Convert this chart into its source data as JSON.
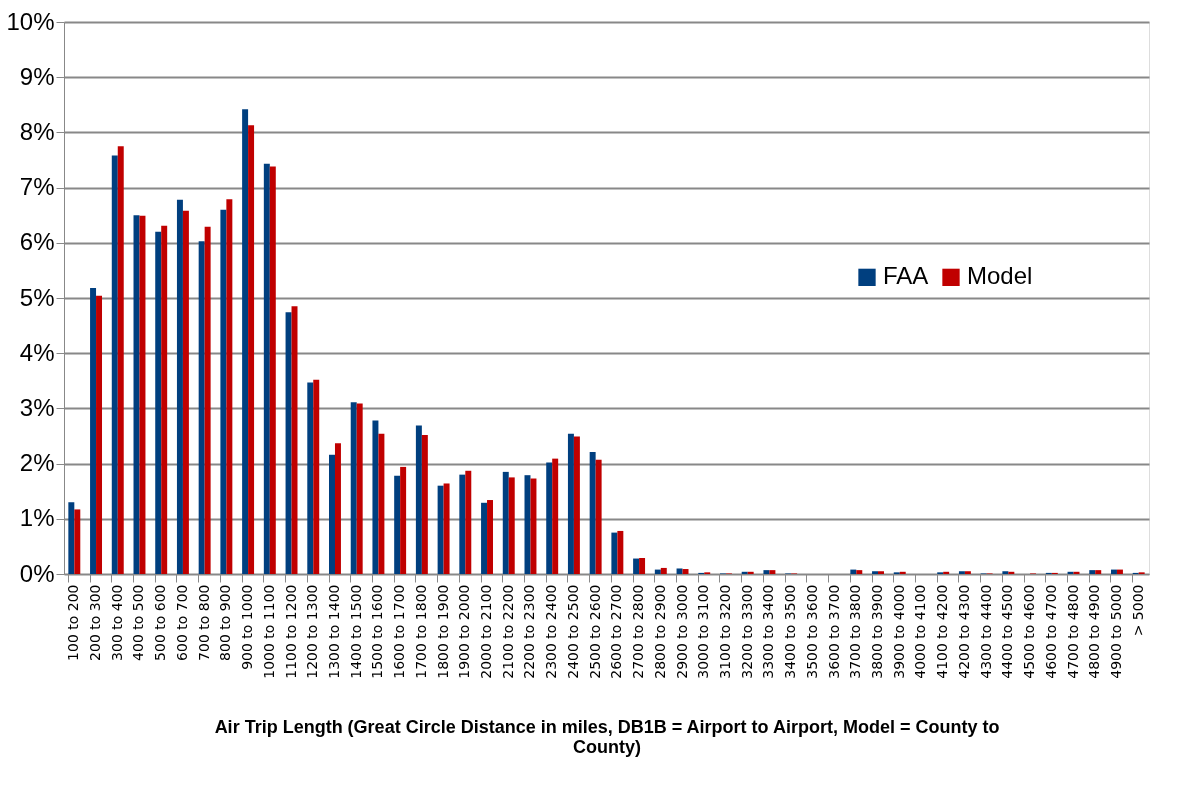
{
  "chart_data": {
    "type": "bar",
    "xlabel": "Air Trip Length (Great Circle Distance in miles, DB1B = Airport to Airport, Model = County to County)",
    "categories": [
      "100 to 200",
      "200 to 300",
      "300 to 400",
      "400 to 500",
      "500 to 600",
      "600 to 700",
      "700 to 800",
      "800 to 900",
      "900 to 1000",
      "1000 to 1100",
      "1100 to 1200",
      "1200 to 1300",
      "1300 to 1400",
      "1400 to 1500",
      "1500 to 1600",
      "1600 to 1700",
      "1700 to 1800",
      "1800 to 1900",
      "1900 to 2000",
      "2000 to 2100",
      "2100 to 2200",
      "2200 to 2300",
      "2300 to 2400",
      "2400 to 2500",
      "2500 to 2600",
      "2600 to 2700",
      "2700 to 2800",
      "2800 to 2900",
      "2900 to 3000",
      "3000 to 3100",
      "3100 to 3200",
      "3200 to 3300",
      "3300 to 3400",
      "3400 to 3500",
      "3500 to 3600",
      "3600 to 3700",
      "3700 to 3800",
      "3800 to 3900",
      "3900 to 4000",
      "4000 to 4100",
      "4100 to 4200",
      "4200 to 4300",
      "4300 to 4400",
      "4400 to 4500",
      "4500 to 4600",
      "4600 to 4700",
      "4700 to 4800",
      "4800 to 4900",
      "4900 to 5000",
      "> 5000"
    ],
    "series": [
      {
        "name": "FAA",
        "color": "#003f7f",
        "values": [
          1.3,
          5.18,
          7.58,
          6.5,
          6.2,
          6.78,
          6.03,
          6.6,
          8.42,
          7.43,
          4.74,
          3.47,
          2.16,
          3.11,
          2.78,
          1.78,
          2.69,
          1.6,
          1.8,
          1.29,
          1.85,
          1.79,
          2.02,
          2.54,
          2.21,
          0.75,
          0.28,
          0.08,
          0.1,
          0.02,
          0.01,
          0.04,
          0.07,
          0.01,
          0,
          0,
          0.08,
          0.05,
          0.03,
          0,
          0.03,
          0.05,
          0.01,
          0.05,
          0,
          0.02,
          0.04,
          0.07,
          0.08,
          0.02
        ]
      },
      {
        "name": "Model",
        "color": "#c00000",
        "values": [
          1.17,
          5.04,
          7.75,
          6.49,
          6.31,
          6.58,
          6.29,
          6.79,
          8.13,
          7.38,
          4.85,
          3.52,
          2.37,
          3.09,
          2.54,
          1.94,
          2.52,
          1.64,
          1.87,
          1.34,
          1.75,
          1.73,
          2.09,
          2.49,
          2.07,
          0.78,
          0.29,
          0.11,
          0.09,
          0.03,
          0.01,
          0.04,
          0.07,
          0.01,
          0,
          0,
          0.07,
          0.05,
          0.04,
          0,
          0.04,
          0.05,
          0.01,
          0.04,
          0.01,
          0.02,
          0.04,
          0.07,
          0.08,
          0.03
        ]
      }
    ],
    "ylim": [
      0,
      10
    ],
    "yticks": [
      {
        "value": 0,
        "label": "0%"
      },
      {
        "value": 1,
        "label": "1%"
      },
      {
        "value": 2,
        "label": "2%"
      },
      {
        "value": 3,
        "label": "3%"
      },
      {
        "value": 4,
        "label": "4%"
      },
      {
        "value": 5,
        "label": "5%"
      },
      {
        "value": 6,
        "label": "6%"
      },
      {
        "value": 7,
        "label": "7%"
      },
      {
        "value": 8,
        "label": "8%"
      },
      {
        "value": 9,
        "label": "9%"
      },
      {
        "value": 10,
        "label": "10%"
      }
    ],
    "grid": "y",
    "legend": "right"
  }
}
